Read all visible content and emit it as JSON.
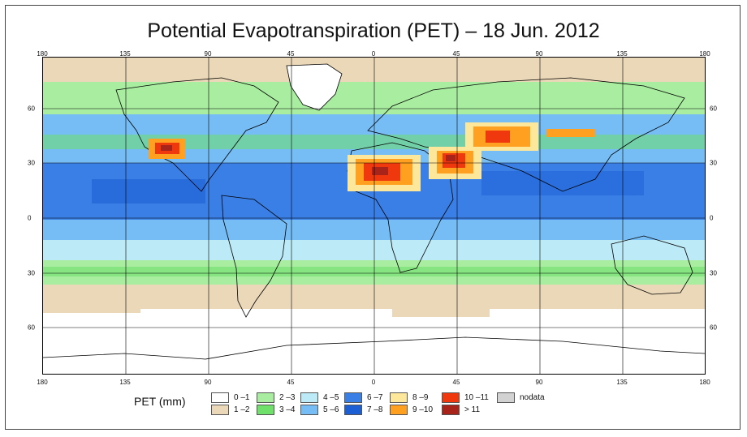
{
  "title": "Potential Evapotranspiration (PET) – 18 Jun. 2012",
  "lon_ticks_top": [
    "180",
    "135",
    "90",
    "45",
    "0",
    "45",
    "90",
    "135",
    "180"
  ],
  "lon_ticks_bottom": [
    "180",
    "135",
    "90",
    "45",
    "0",
    "45",
    "90",
    "135",
    "180"
  ],
  "lat_ticks_left": [
    "60",
    "30",
    "0",
    "30",
    "60"
  ],
  "lat_ticks_right": [
    "60",
    "30",
    "0",
    "30",
    "60"
  ],
  "legend": {
    "label": "PET (mm)",
    "items": [
      {
        "label": "0 –1",
        "color": "#ffffff"
      },
      {
        "label": "1 –2",
        "color": "#ead8b8"
      },
      {
        "label": "2 –3",
        "color": "#a9eea0"
      },
      {
        "label": "3 –4",
        "color": "#6fe06a"
      },
      {
        "label": "4 –5",
        "color": "#bdeaf7"
      },
      {
        "label": "5 –6",
        "color": "#76bdf5"
      },
      {
        "label": "6 –7",
        "color": "#3a7fe6"
      },
      {
        "label": "7 –8",
        "color": "#1c5ed4"
      },
      {
        "label": "8 –9",
        "color": "#fde79a"
      },
      {
        "label": "9 –10",
        "color": "#ffa020"
      },
      {
        "label": "10 –11",
        "color": "#f0380e"
      },
      {
        "label": "> 11",
        "color": "#a8241a"
      },
      {
        "label": "nodata",
        "color": "#d2d2d2"
      }
    ]
  }
}
